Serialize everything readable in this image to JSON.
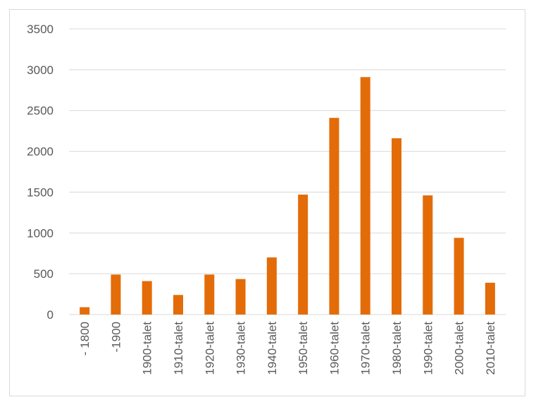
{
  "chart_data": {
    "type": "bar",
    "title": "",
    "xlabel": "",
    "ylabel": "",
    "ylim": [
      0,
      3500
    ],
    "yticks": [
      0,
      500,
      1000,
      1500,
      2000,
      2500,
      3000,
      3500
    ],
    "grid": true,
    "legend": "none",
    "categories": [
      "- 1800",
      "-1900",
      "1900-talet",
      "1910-talet",
      "1920-talet",
      "1930-talet",
      "1940-talet",
      "1950-talet",
      "1960-talet",
      "1970-talet",
      "1980-talet",
      "1990-talet",
      "2000-talet",
      "2010-talet"
    ],
    "values": [
      90,
      490,
      410,
      240,
      490,
      435,
      700,
      1470,
      2410,
      2910,
      2160,
      1460,
      940,
      390
    ],
    "colors": {
      "bar": "#e36c09",
      "grid": "#d9d9d9",
      "text": "#595959"
    }
  }
}
